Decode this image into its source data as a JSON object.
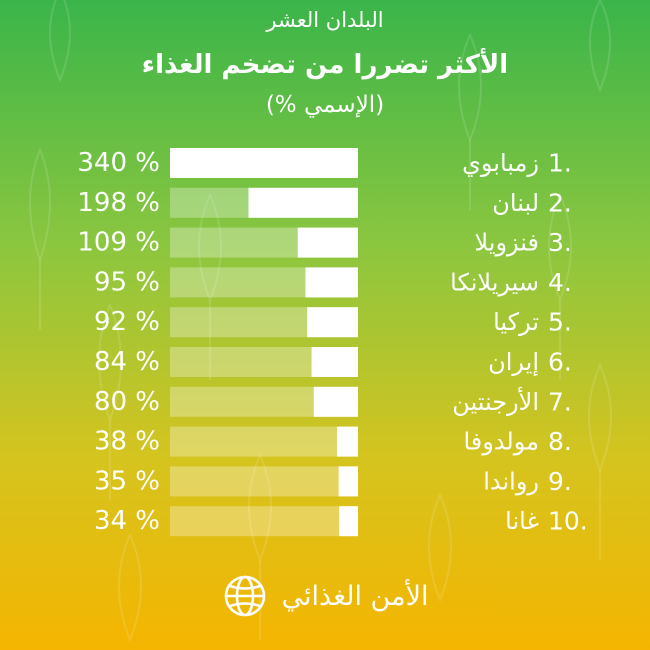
{
  "title": {
    "line1": "البلدان العشر",
    "line2": "الأكثر تضررا من تضخم الغذاء",
    "line3": "(الإسمي %)"
  },
  "chart_data": {
    "type": "bar",
    "orientation": "horizontal",
    "ranks": [
      "1.",
      "2.",
      "3.",
      "4.",
      "5.",
      "6.",
      "7.",
      "8.",
      "9.",
      "10."
    ],
    "categories": [
      "زمبابوي",
      "لبنان",
      "فنزويلا",
      "سيريلانكا",
      "تركيا",
      "إيران",
      "الأرجنتين",
      "مولدوفا",
      "رواندا",
      "غانا"
    ],
    "values": [
      340,
      198,
      109,
      95,
      92,
      84,
      80,
      38,
      35,
      34
    ],
    "value_labels": [
      "340 %",
      "198 %",
      "109 %",
      "95 %",
      "92 %",
      "84 %",
      "80 %",
      "38 %",
      "35 %",
      "34 %"
    ],
    "xlim": [
      0,
      340
    ],
    "grid": false,
    "legend": "none"
  },
  "footer": {
    "label": "الأمن الغذائي",
    "icon": "globe-icon"
  },
  "colors": {
    "bar": "#ffffff",
    "track": "rgba(255,255,255,0.3)",
    "text": "#ffffff",
    "background_top": "#3ab54a",
    "background_bottom": "#f5b500"
  }
}
